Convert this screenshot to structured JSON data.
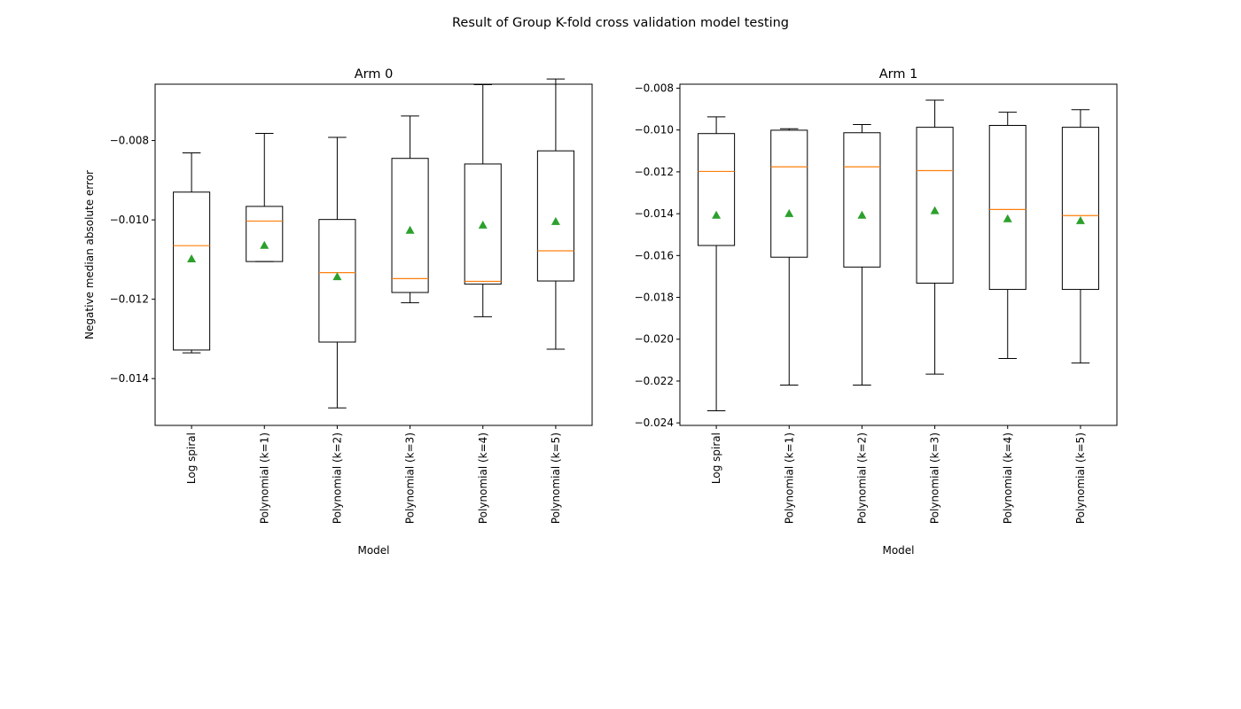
{
  "figure": {
    "suptitle": "Result of Group K-fold cross validation model testing"
  },
  "chart_data": [
    {
      "type": "box",
      "title": "Arm 0",
      "xlabel": "Model",
      "ylabel": "Negative median absolute error",
      "ylim": [
        -0.01518,
        -0.00658
      ],
      "yticks": [
        -0.014,
        -0.012,
        -0.01,
        -0.008
      ],
      "ytick_labels": [
        "−0.014",
        "−0.012",
        "−0.010",
        "−0.008"
      ],
      "categories": [
        "Log spiral",
        "Polynomial (k=1)",
        "Polynomial (k=2)",
        "Polynomial (k=3)",
        "Polynomial (k=4)",
        "Polynomial (k=5)"
      ],
      "boxes": [
        {
          "whisker_low": -0.01335,
          "q1": -0.01328,
          "median": -0.01065,
          "q3": -0.0093,
          "whisker_high": -0.00831,
          "mean": -0.01098
        },
        {
          "whisker_low": -0.01105,
          "q1": -0.01105,
          "median": -0.01003,
          "q3": -0.00966,
          "whisker_high": -0.00782,
          "mean": -0.01064
        },
        {
          "whisker_low": -0.01474,
          "q1": -0.01308,
          "median": -0.01133,
          "q3": -0.00999,
          "whisker_high": -0.00792,
          "mean": -0.01143
        },
        {
          "whisker_low": -0.01209,
          "q1": -0.01183,
          "median": -0.01148,
          "q3": -0.00845,
          "whisker_high": -0.00738,
          "mean": -0.01026
        },
        {
          "whisker_low": -0.01244,
          "q1": -0.01162,
          "median": -0.01155,
          "q3": -0.00859,
          "whisker_high": -0.00659,
          "mean": -0.01013
        },
        {
          "whisker_low": -0.01326,
          "q1": -0.01154,
          "median": -0.01078,
          "q3": -0.00826,
          "whisker_high": -0.00645,
          "mean": -0.01004
        }
      ]
    },
    {
      "type": "box",
      "title": "Arm 1",
      "xlabel": "Model",
      "ylabel": "",
      "ylim": [
        -0.02412,
        -0.00781
      ],
      "yticks": [
        -0.024,
        -0.022,
        -0.02,
        -0.018,
        -0.016,
        -0.014,
        -0.012,
        -0.01,
        -0.008
      ],
      "ytick_labels": [
        "−0.024",
        "−0.022",
        "−0.020",
        "−0.018",
        "−0.016",
        "−0.014",
        "−0.012",
        "−0.010",
        "−0.008"
      ],
      "categories": [
        "Log spiral",
        "Polynomial (k=1)",
        "Polynomial (k=2)",
        "Polynomial (k=3)",
        "Polynomial (k=4)",
        "Polynomial (k=5)"
      ],
      "boxes": [
        {
          "whisker_low": -0.02342,
          "q1": -0.01552,
          "median": -0.01198,
          "q3": -0.01017,
          "whisker_high": -0.00937,
          "mean": -0.01407
        },
        {
          "whisker_low": -0.02219,
          "q1": -0.01608,
          "median": -0.01176,
          "q3": -0.01001,
          "whisker_high": -0.00994,
          "mean": -0.01399
        },
        {
          "whisker_low": -0.02219,
          "q1": -0.01655,
          "median": -0.01176,
          "q3": -0.01013,
          "whisker_high": -0.00974,
          "mean": -0.01407
        },
        {
          "whisker_low": -0.02167,
          "q1": -0.01732,
          "median": -0.01194,
          "q3": -0.00987,
          "whisker_high": -0.00857,
          "mean": -0.01385
        },
        {
          "whisker_low": -0.02092,
          "q1": -0.01762,
          "median": -0.0138,
          "q3": -0.00978,
          "whisker_high": -0.00915,
          "mean": -0.01424
        },
        {
          "whisker_low": -0.02114,
          "q1": -0.01762,
          "median": -0.01409,
          "q3": -0.00987,
          "whisker_high": -0.00903,
          "mean": -0.01433
        }
      ]
    }
  ],
  "style": {
    "box_color": "#000000",
    "median_color": "#ff7f0e",
    "mean_color": "#2ca02c"
  }
}
